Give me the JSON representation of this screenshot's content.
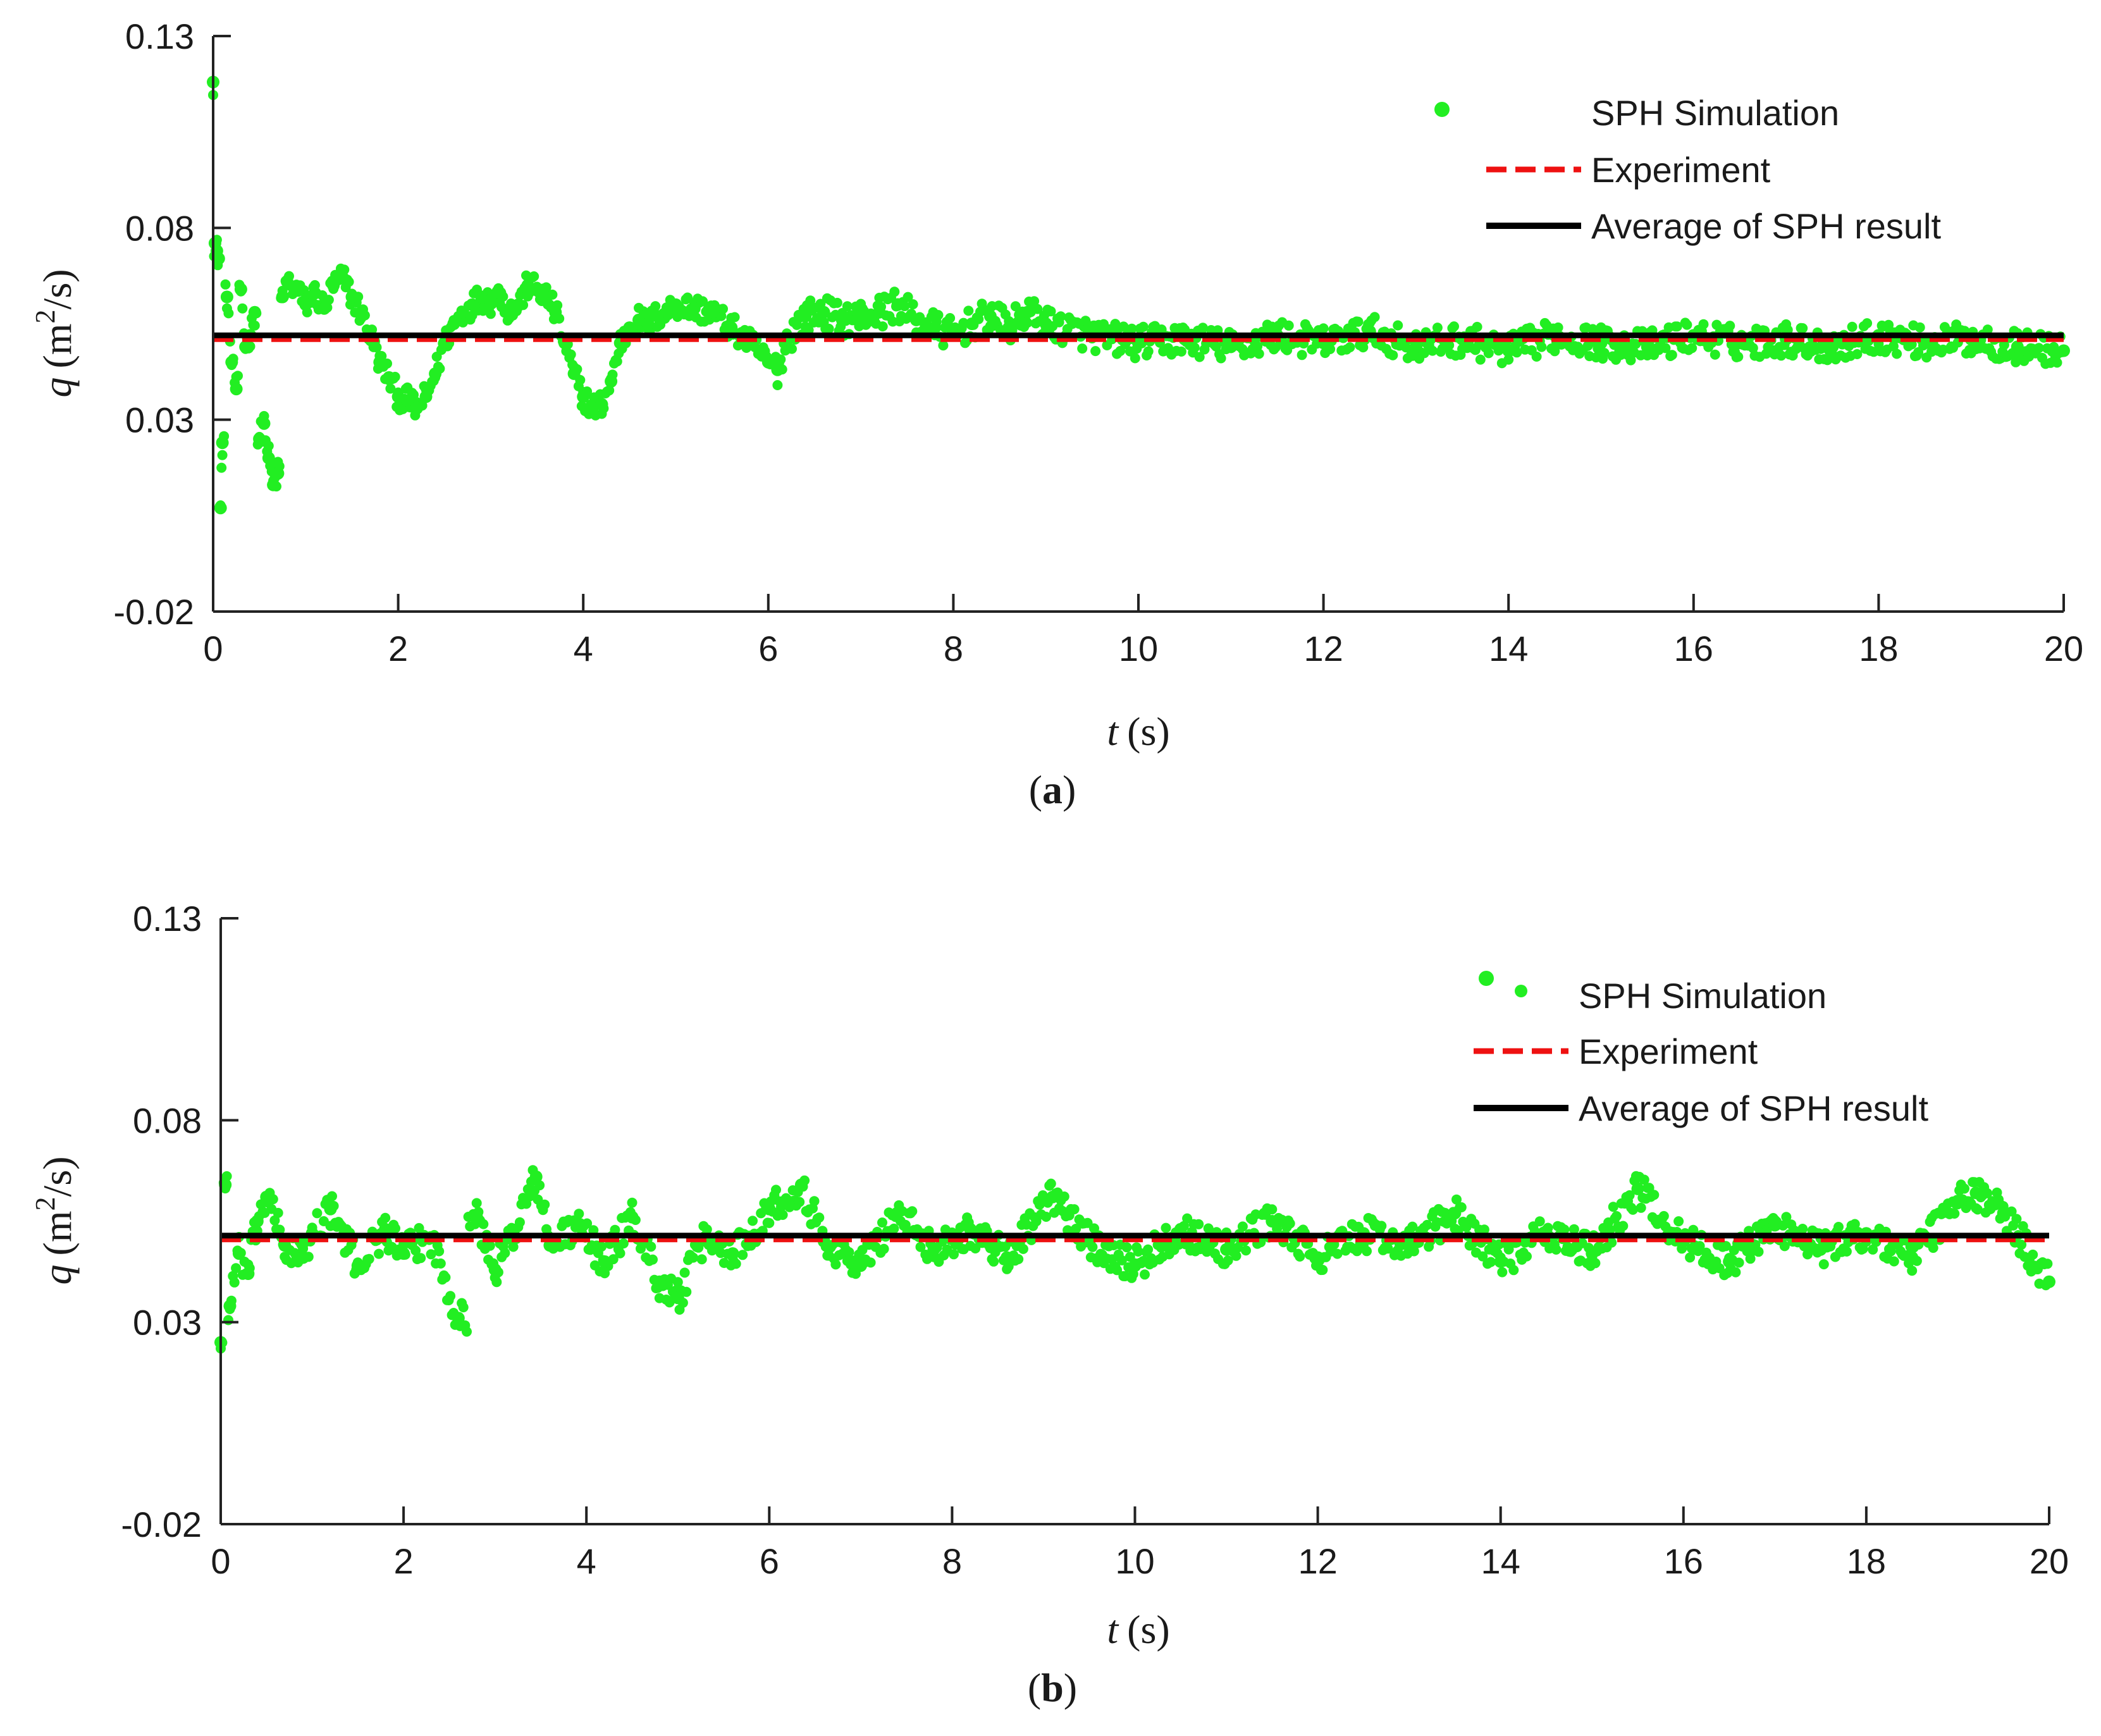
{
  "chart_data": [
    {
      "type": "scatter",
      "panel_label": "a",
      "xlabel_var": "t",
      "xlabel_unit": "(s)",
      "ylabel_var": "q",
      "ylabel_unit_prefix": "(m",
      "ylabel_unit_sup": "2",
      "ylabel_unit_suffix": "/s)",
      "xlim": [
        0,
        20
      ],
      "ylim": [
        -0.02,
        0.13
      ],
      "xticks": [
        0,
        2,
        4,
        6,
        8,
        10,
        12,
        14,
        16,
        18,
        20
      ],
      "yticks": [
        -0.02,
        0.03,
        0.08,
        0.13
      ],
      "xtick_labels": [
        "0",
        "2",
        "4",
        "6",
        "8",
        "10",
        "12",
        "14",
        "16",
        "18",
        "20"
      ],
      "ytick_labels": [
        "-0.02",
        "0.03",
        "0.08",
        "0.13"
      ],
      "legend_position": "top-right",
      "series": [
        {
          "name": "SPH Simulation",
          "kind": "markers",
          "color": "#22ee22",
          "x": [
            0.0,
            0.02,
            0.04,
            0.06,
            0.08,
            0.1,
            0.15,
            0.2,
            0.25,
            0.3,
            0.35,
            0.4,
            0.45,
            0.5,
            0.55,
            0.6,
            0.65,
            0.7,
            0.75,
            0.8,
            0.9,
            1.0,
            1.1,
            1.2,
            1.3,
            1.4,
            1.5,
            1.6,
            1.7,
            1.8,
            1.9,
            2.0,
            2.1,
            2.2,
            2.3,
            2.4,
            2.5,
            2.6,
            2.7,
            2.8,
            2.9,
            3.0,
            3.1,
            3.2,
            3.3,
            3.4,
            3.5,
            3.6,
            3.7,
            3.8,
            3.9,
            4.0,
            4.1,
            4.2,
            4.3,
            4.4,
            4.5,
            4.6,
            4.7,
            4.8,
            4.9,
            5.0,
            5.2,
            5.4,
            5.6,
            5.8,
            6.0,
            6.1,
            6.2,
            6.4,
            6.6,
            6.8,
            7.0,
            7.2,
            7.4,
            7.6,
            7.8,
            8.0,
            8.2,
            8.4,
            8.6,
            8.8,
            9.0,
            9.5,
            10.0,
            10.5,
            11.0,
            11.5,
            12.0,
            12.5,
            13.0,
            13.5,
            14.0,
            14.5,
            15.0,
            15.5,
            16.0,
            16.5,
            17.0,
            17.5,
            18.0,
            18.5,
            19.0,
            19.5,
            20.0
          ],
          "values": [
            0.118,
            0.076,
            0.074,
            0.072,
            0.007,
            0.024,
            0.062,
            0.045,
            0.038,
            0.064,
            0.049,
            0.052,
            0.058,
            0.025,
            0.029,
            0.02,
            0.013,
            0.016,
            0.062,
            0.066,
            0.064,
            0.06,
            0.063,
            0.059,
            0.065,
            0.067,
            0.062,
            0.058,
            0.052,
            0.045,
            0.041,
            0.036,
            0.035,
            0.033,
            0.036,
            0.042,
            0.05,
            0.055,
            0.058,
            0.06,
            0.062,
            0.061,
            0.063,
            0.058,
            0.06,
            0.065,
            0.064,
            0.062,
            0.058,
            0.05,
            0.042,
            0.036,
            0.033,
            0.034,
            0.04,
            0.05,
            0.054,
            0.056,
            0.055,
            0.057,
            0.058,
            0.06,
            0.059,
            0.058,
            0.054,
            0.05,
            0.045,
            0.043,
            0.051,
            0.057,
            0.058,
            0.056,
            0.057,
            0.058,
            0.06,
            0.056,
            0.054,
            0.052,
            0.055,
            0.057,
            0.054,
            0.058,
            0.055,
            0.052,
            0.05,
            0.051,
            0.049,
            0.052,
            0.05,
            0.053,
            0.049,
            0.051,
            0.048,
            0.052,
            0.05,
            0.049,
            0.052,
            0.05,
            0.051,
            0.049,
            0.052,
            0.05,
            0.051,
            0.049,
            0.048
          ]
        },
        {
          "name": "Experiment",
          "kind": "dashed-line",
          "color": "#ee1111",
          "x": [
            0,
            20
          ],
          "values": [
            0.051,
            0.051
          ]
        },
        {
          "name": "Average of SPH result",
          "kind": "solid-line",
          "color": "#000000",
          "x": [
            0,
            20
          ],
          "values": [
            0.052,
            0.052
          ]
        }
      ]
    },
    {
      "type": "scatter",
      "panel_label": "b",
      "xlabel_var": "t",
      "xlabel_unit": "(s)",
      "ylabel_var": "q",
      "ylabel_unit_prefix": "(m",
      "ylabel_unit_sup": "2",
      "ylabel_unit_suffix": "/s)",
      "xlim": [
        0,
        20
      ],
      "ylim": [
        -0.02,
        0.13
      ],
      "xticks": [
        0,
        2,
        4,
        6,
        8,
        10,
        12,
        14,
        16,
        18,
        20
      ],
      "yticks": [
        -0.02,
        0.03,
        0.08,
        0.13
      ],
      "xtick_labels": [
        "0",
        "2",
        "4",
        "6",
        "8",
        "10",
        "12",
        "14",
        "16",
        "18",
        "20"
      ],
      "ytick_labels": [
        "-0.02",
        "0.03",
        "0.08",
        "0.13"
      ],
      "legend_position": "top-right",
      "series": [
        {
          "name": "SPH Simulation",
          "kind": "markers",
          "color": "#22ee22",
          "x": [
            0.0,
            0.05,
            0.1,
            0.2,
            0.3,
            0.4,
            0.5,
            0.7,
            0.9,
            1.0,
            1.2,
            1.5,
            1.8,
            2.0,
            2.3,
            2.6,
            2.8,
            3.0,
            3.2,
            3.45,
            3.6,
            3.9,
            4.2,
            4.5,
            4.8,
            5.0,
            5.3,
            5.6,
            6.0,
            6.35,
            6.6,
            7.0,
            7.4,
            7.8,
            8.2,
            8.6,
            9.1,
            9.5,
            10.0,
            10.5,
            11.0,
            11.5,
            12.0,
            12.5,
            13.0,
            13.5,
            14.0,
            14.5,
            15.0,
            15.5,
            16.0,
            16.5,
            17.0,
            17.5,
            18.0,
            18.5,
            19.0,
            19.2,
            19.5,
            20.0
          ],
          "values": [
            0.025,
            0.064,
            0.034,
            0.047,
            0.042,
            0.055,
            0.061,
            0.049,
            0.046,
            0.052,
            0.058,
            0.044,
            0.053,
            0.047,
            0.051,
            0.031,
            0.056,
            0.043,
            0.052,
            0.066,
            0.049,
            0.054,
            0.045,
            0.056,
            0.04,
            0.036,
            0.051,
            0.047,
            0.058,
            0.064,
            0.05,
            0.044,
            0.057,
            0.048,
            0.053,
            0.046,
            0.061,
            0.05,
            0.044,
            0.053,
            0.048,
            0.055,
            0.046,
            0.052,
            0.049,
            0.057,
            0.045,
            0.052,
            0.047,
            0.063,
            0.05,
            0.045,
            0.054,
            0.048,
            0.052,
            0.046,
            0.06,
            0.062,
            0.057,
            0.04
          ]
        },
        {
          "name": "Experiment",
          "kind": "dashed-line",
          "color": "#ee1111",
          "x": [
            0,
            20
          ],
          "values": [
            0.0505,
            0.0505
          ]
        },
        {
          "name": "Average of SPH result",
          "kind": "solid-line",
          "color": "#000000",
          "x": [
            0,
            20
          ],
          "values": [
            0.0505,
            0.0505
          ]
        }
      ]
    }
  ]
}
